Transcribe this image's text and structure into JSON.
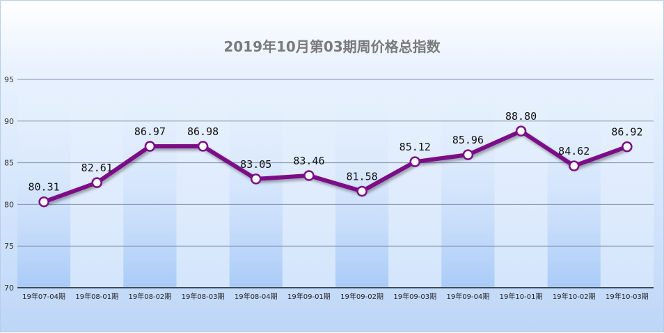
{
  "chart_data": {
    "type": "line",
    "title": "2019年10月第03期周价格总指数",
    "categories": [
      "19年07-04期",
      "19年08-01期",
      "19年08-02期",
      "19年08-03期",
      "19年08-04期",
      "19年09-01期",
      "19年09-02期",
      "19年09-03期",
      "19年09-04期",
      "19年10-01期",
      "19年10-02期",
      "19年10-03期"
    ],
    "series": [
      {
        "values": [
          80.31,
          82.61,
          86.97,
          86.98,
          83.05,
          83.46,
          81.58,
          85.12,
          85.96,
          88.8,
          84.62,
          86.92
        ]
      }
    ],
    "data_labels": [
      "80.31",
      "82.61",
      "86.97",
      "86.98",
      "83.05",
      "83.46",
      "81.58",
      "85.12",
      "85.96",
      "88.80",
      "84.62",
      "86.92"
    ],
    "ylim": [
      70,
      95
    ],
    "yticks": [
      70,
      75,
      80,
      85,
      90,
      95
    ],
    "grid": true,
    "colors": {
      "line": "#7b0f86",
      "marker_fill": "#ffffff",
      "band_dark": "#b3d1fa",
      "band_light": "#deebfd",
      "grid": "#8090a8"
    }
  }
}
